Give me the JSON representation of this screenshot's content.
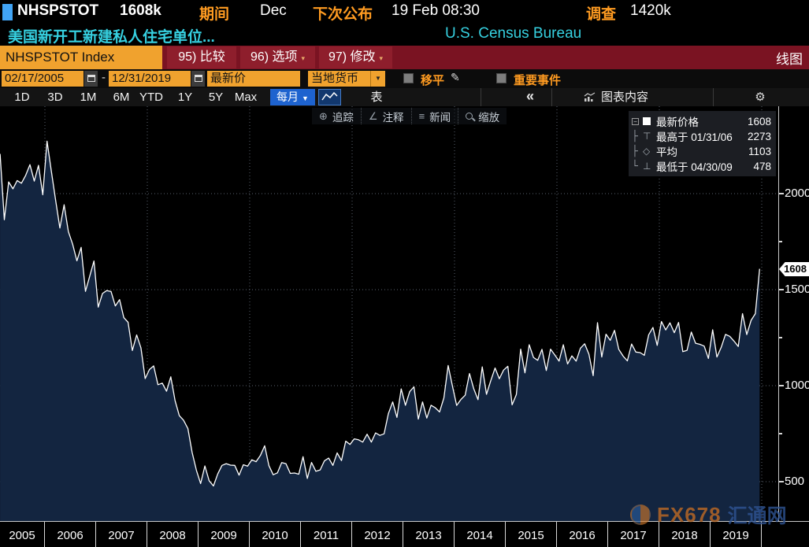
{
  "security_row": {
    "ticker": "NHSPSTOT",
    "last_value": "1608k",
    "period_label": "期间",
    "period_value": "Dec",
    "next_release_label": "下次公布",
    "next_release_value": "19 Feb 08:30",
    "survey_label": "调查",
    "survey_value": "1420k"
  },
  "description_row": {
    "security_name": "美国新开工新建私人住宅单位...",
    "source": "U.S. Census Bureau"
  },
  "menu_row": {
    "ticker_field": "NHSPSTOT Index",
    "compare_btn": "95) 比较",
    "options_btn": "96) 选项",
    "edit_btn": "97) 修改",
    "chart_type": "线图"
  },
  "settings_row": {
    "start_date": "02/17/2005",
    "end_date": "12/31/2019",
    "field_label": "最新价",
    "currency_label": "当地货币",
    "mov_avg_label": "移平",
    "key_events_label": "重要事件"
  },
  "toolbar_row": {
    "ranges": [
      "1D",
      "3D",
      "1M",
      "6M",
      "YTD",
      "1Y",
      "5Y",
      "Max"
    ],
    "frequency": "每月",
    "table_label": "表",
    "collapse_label": "«",
    "chart_content_label": "图表内容",
    "gear_icon": "⚙"
  },
  "chart_toolbar": {
    "track": "追踪",
    "annotate": "注释",
    "news": "新闻",
    "zoom": "缩放"
  },
  "legend": {
    "rows": [
      {
        "label": "最新价格",
        "value": "1608"
      },
      {
        "label": "最高于 01/31/06",
        "value": "2273"
      },
      {
        "label": "平均",
        "value": "1103"
      },
      {
        "label": "最低于 04/30/09",
        "value": "478"
      }
    ]
  },
  "axis_badge": "1608",
  "watermark": {
    "brand": "FX678",
    "brand_cn": "汇通网"
  },
  "colors": {
    "amber_text": "#ff9b21",
    "amber_field": "#f0a22e",
    "red_bar": "#7a1322",
    "red_button": "#8e1e2c",
    "cyan": "#36d0e0",
    "blue_button": "#1e63cf",
    "chart_line": "#ffffff",
    "chart_fill": "#132540",
    "grid": "#59616c",
    "badge_bg": "#ffffff"
  },
  "chart_data": {
    "type": "line",
    "title": "NHSPSTOT Index — 美国新开工新建私人住宅单位 (U.S. Housing Starts, thousands)",
    "frequency": "monthly",
    "start": "2005-02",
    "end": "2019-12",
    "unit": "k units",
    "values": [
      2207,
      1864,
      2061,
      2025,
      2068,
      2054,
      2095,
      2151,
      2065,
      2147,
      1994,
      2273,
      2119,
      1969,
      1821,
      1942,
      1802,
      1737,
      1650,
      1720,
      1491,
      1570,
      1649,
      1409,
      1480,
      1495,
      1490,
      1415,
      1448,
      1354,
      1330,
      1183,
      1264,
      1197,
      1037,
      1084,
      1103,
      1005,
      1013,
      971,
      1046,
      923,
      844,
      820,
      777,
      652,
      560,
      490,
      582,
      505,
      478,
      540,
      585,
      594,
      586,
      585,
      534,
      588,
      581,
      614,
      604,
      636,
      687,
      583,
      536,
      546,
      599,
      594,
      543,
      545,
      539,
      630,
      517,
      600,
      554,
      561,
      608,
      623,
      585,
      650,
      610,
      711,
      694,
      723,
      718,
      706,
      747,
      706,
      754,
      741,
      749,
      854,
      915,
      835,
      983,
      898,
      969,
      994,
      826,
      915,
      831,
      898,
      885,
      863,
      936,
      1105,
      999,
      897,
      928,
      950,
      1063,
      984,
      927,
      1098,
      955,
      1026,
      1092,
      1036,
      1081,
      1101,
      900,
      954,
      1190,
      1067,
      1213,
      1147,
      1132,
      1189,
      1079,
      1190,
      1160,
      1128,
      1213,
      1113,
      1155,
      1128,
      1195,
      1218,
      1164,
      1052,
      1328,
      1149,
      1268,
      1236,
      1288,
      1189,
      1154,
      1129,
      1217,
      1175,
      1172,
      1158,
      1265,
      1303,
      1210,
      1334,
      1290,
      1327,
      1276,
      1329,
      1177,
      1184,
      1279,
      1221,
      1215,
      1206,
      1142,
      1291,
      1149,
      1199,
      1267,
      1257,
      1232,
      1204,
      1375,
      1266,
      1340,
      1375,
      1608
    ],
    "last": 1608,
    "high": {
      "date": "01/31/06",
      "value": 2273
    },
    "average": 1103,
    "low": {
      "date": "04/30/09",
      "value": 478
    },
    "yticks": [
      500,
      1000,
      1500,
      2000
    ],
    "yticks_minor": [
      750,
      1250,
      1750
    ],
    "xticks": [
      2005,
      2006,
      2007,
      2008,
      2009,
      2010,
      2011,
      2012,
      2013,
      2014,
      2015,
      2016,
      2017,
      2018,
      2019
    ],
    "ylim": [
      300,
      2460
    ],
    "grid": "dotted",
    "legend_position": "top-right"
  }
}
